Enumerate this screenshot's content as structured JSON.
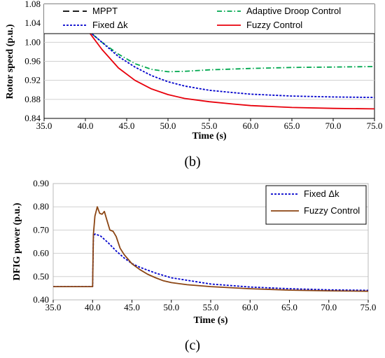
{
  "chart_data": [
    {
      "type": "line",
      "caption": "(b)",
      "xlabel": "Time (s)",
      "ylabel": "Rotor speed (p.u.)",
      "xlim": [
        35,
        75
      ],
      "ylim": [
        0.84,
        1.08
      ],
      "xticks": [
        "35.0",
        "40.0",
        "45.0",
        "50.0",
        "55.0",
        "60.0",
        "65.0",
        "70.0",
        "75.0"
      ],
      "yticks": [
        "0.84",
        "0.88",
        "0.92",
        "0.96",
        "1.00",
        "1.04",
        "1.08"
      ],
      "grid": "horizontal",
      "legend": "top",
      "series": [
        {
          "name": "MPPT",
          "color": "#000000",
          "dash": "long-dash",
          "x": [
            35,
            40,
            40.5,
            45,
            50,
            55,
            60,
            65,
            70,
            75
          ],
          "y": [
            1.024,
            1.024,
            1.024,
            1.025,
            1.026,
            1.026,
            1.026,
            1.026,
            1.026,
            1.026
          ]
        },
        {
          "name": "Adaptive Droop Control",
          "color": "#00a84f",
          "dash": "dash-dot",
          "x": [
            35,
            40,
            40.5,
            42,
            44,
            46,
            48,
            50,
            52,
            55,
            60,
            65,
            70,
            75
          ],
          "y": [
            1.024,
            1.024,
            1.022,
            1.0,
            0.975,
            0.955,
            0.943,
            0.938,
            0.939,
            0.942,
            0.945,
            0.947,
            0.948,
            0.949
          ]
        },
        {
          "name": "Fixed Δk",
          "color": "#0000cc",
          "dash": "short-dash",
          "x": [
            35,
            40,
            40.5,
            42,
            44,
            46,
            48,
            50,
            52,
            55,
            58,
            60,
            65,
            70,
            75
          ],
          "y": [
            1.024,
            1.024,
            1.022,
            1.0,
            0.97,
            0.948,
            0.93,
            0.917,
            0.908,
            0.899,
            0.894,
            0.891,
            0.887,
            0.885,
            0.884
          ]
        },
        {
          "name": "Fuzzy Control",
          "color": "#e8000b",
          "dash": "solid",
          "x": [
            35,
            40,
            40.5,
            42,
            44,
            46,
            48,
            50,
            52,
            55,
            58,
            60,
            65,
            70,
            75
          ],
          "y": [
            1.024,
            1.024,
            1.02,
            0.985,
            0.946,
            0.92,
            0.902,
            0.89,
            0.882,
            0.875,
            0.87,
            0.867,
            0.863,
            0.861,
            0.86
          ]
        }
      ]
    },
    {
      "type": "line",
      "caption": "(c)",
      "xlabel": "Time (s)",
      "ylabel": "DFIG  power (p.u.)",
      "xlim": [
        35,
        75
      ],
      "ylim": [
        0.4,
        0.9
      ],
      "xticks": [
        "35.0",
        "40.0",
        "45.0",
        "50.0",
        "55.0",
        "60.0",
        "65.0",
        "70.0",
        "75.0"
      ],
      "yticks": [
        "0.40",
        "0.50",
        "0.60",
        "0.70",
        "0.80",
        "0.90"
      ],
      "grid": "horizontal",
      "legend": "top-right",
      "series": [
        {
          "name": "Fixed Δk",
          "color": "#0000cc",
          "dash": "short-dash",
          "x": [
            35,
            40,
            40.1,
            40.3,
            41,
            42,
            43,
            44,
            45,
            46,
            48,
            50,
            55,
            60,
            65,
            70,
            75
          ],
          "y": [
            0.457,
            0.457,
            0.67,
            0.683,
            0.675,
            0.645,
            0.61,
            0.58,
            0.556,
            0.54,
            0.515,
            0.495,
            0.468,
            0.455,
            0.448,
            0.443,
            0.441
          ]
        },
        {
          "name": "Fuzzy Control",
          "color": "#8b4513",
          "dash": "solid",
          "x": [
            35,
            40,
            40.1,
            40.3,
            40.6,
            40.9,
            41.2,
            41.5,
            41.8,
            42.2,
            42.6,
            43,
            43.5,
            44,
            45,
            46,
            47,
            48,
            49,
            50,
            52,
            55,
            60,
            65,
            70,
            75
          ],
          "y": [
            0.457,
            0.457,
            0.68,
            0.76,
            0.8,
            0.772,
            0.768,
            0.78,
            0.745,
            0.7,
            0.695,
            0.672,
            0.622,
            0.595,
            0.555,
            0.53,
            0.51,
            0.495,
            0.482,
            0.474,
            0.465,
            0.457,
            0.448,
            0.442,
            0.439,
            0.437
          ]
        }
      ]
    }
  ]
}
